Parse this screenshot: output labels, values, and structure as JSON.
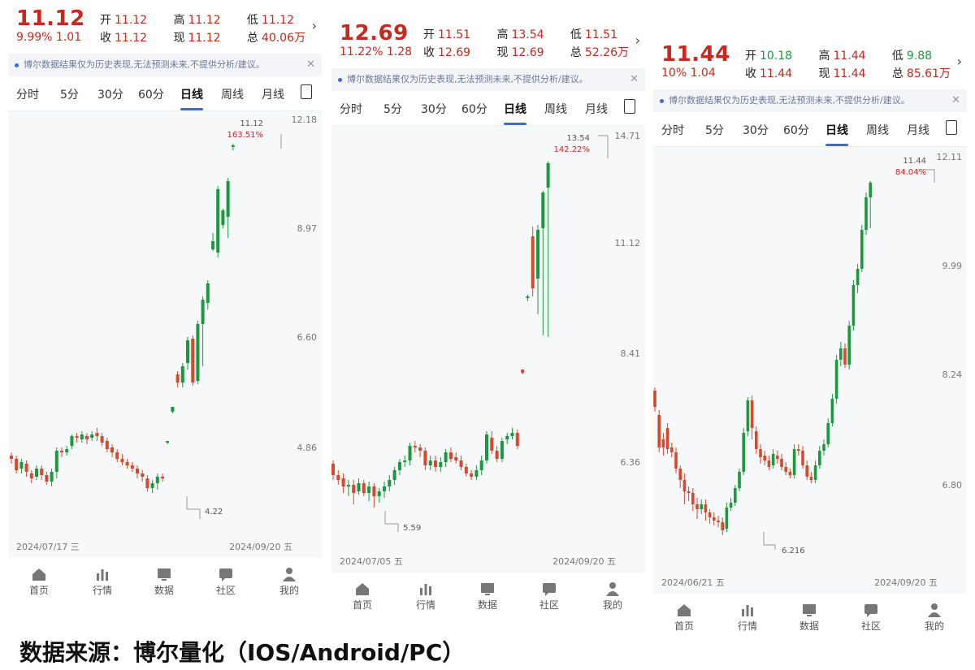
{
  "source_caption": "数据来源：博尔量化（IOS/Android/PC）",
  "colors": {
    "up": "#d9482d",
    "down": "#1a9a3c",
    "accent": "#3a6cd9"
  },
  "tabs": [
    "分时",
    "5分",
    "30分",
    "60分",
    "日线",
    "周线",
    "月线"
  ],
  "active_tab": "日线",
  "notice": "博尔数据结果仅为历史表现,无法预测未来,不提供分析/建议。",
  "nav": [
    "首页",
    "行情",
    "数据",
    "社区",
    "我的"
  ],
  "nav_icons": [
    "home-icon",
    "market-icon",
    "data-icon",
    "community-icon",
    "profile-icon"
  ],
  "panels": [
    {
      "price": "11.12",
      "change": "9.99%  1.01",
      "open": "11.12",
      "close": "11.12",
      "high": "11.12",
      "low": "11.12",
      "now": "11.12",
      "total": "40.06万",
      "chart": {
        "axis_labels": [
          "12.18",
          "8.97",
          "6.60",
          "4.86"
        ],
        "high_label": "11.12",
        "high_pct": "163.51%",
        "low_label": "4.22",
        "start_date": "2024/07/17 三",
        "end_date": "2024/09/20 五"
      }
    },
    {
      "price": "12.69",
      "change": "11.22%  1.28",
      "open": "11.51",
      "close": "12.69",
      "high": "13.54",
      "low": "11.51",
      "now": "12.69",
      "total": "52.26万",
      "chart": {
        "axis_labels": [
          "14.71",
          "11.12",
          "8.41",
          "6.36"
        ],
        "high_label": "13.54",
        "high_pct": "142.22%",
        "low_label": "5.59",
        "start_date": "2024/07/05 五",
        "end_date": "2024/09/20 五"
      }
    },
    {
      "price": "11.44",
      "change": "10%  1.04",
      "open": "10.18",
      "close": "11.44",
      "high": "11.44",
      "low": "9.88",
      "now": "11.44",
      "total": "85.61万",
      "open_color": "green",
      "low_color": "green",
      "close_color": "red",
      "chart": {
        "axis_labels": [
          "12.11",
          "9.99",
          "8.24",
          "6.80"
        ],
        "high_label": "11.44",
        "high_pct": "84.04%",
        "low_label": "6.216",
        "start_date": "2024/06/21 五",
        "end_date": "2024/09/20 五"
      }
    }
  ],
  "labels": {
    "open": "开",
    "close": "收",
    "high": "高",
    "low": "低",
    "now": "现",
    "total": "总"
  }
}
